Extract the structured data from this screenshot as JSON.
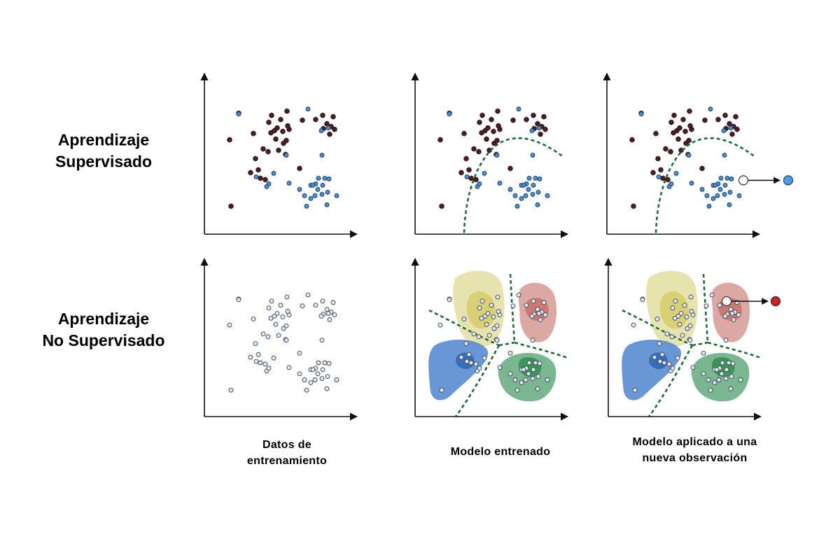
{
  "rows": [
    {
      "lines": [
        "Aprendizaje",
        "Supervisado"
      ]
    },
    {
      "lines": [
        "Aprendizaje",
        "No Supervisado"
      ]
    }
  ],
  "columns": [
    {
      "lines": [
        "Datos de",
        "entrenamiento"
      ]
    },
    {
      "lines": [
        "Modelo entrenado"
      ]
    },
    {
      "lines": [
        "Modelo aplicado a una",
        "nueva observación"
      ]
    }
  ],
  "colors": {
    "class_dark": "#4a1f22",
    "class_blue": "#4a8fd0",
    "unlabeled": "#dfe6ee",
    "boundary": "#1d6b3b",
    "cluster_yellow": "#d8d27a",
    "cluster_red": "#c97a72",
    "cluster_blue": "#4f86cf",
    "cluster_green": "#5aa474",
    "new_point_sup": "#4a9be8",
    "new_point_unsup": "#c0262a"
  }
}
